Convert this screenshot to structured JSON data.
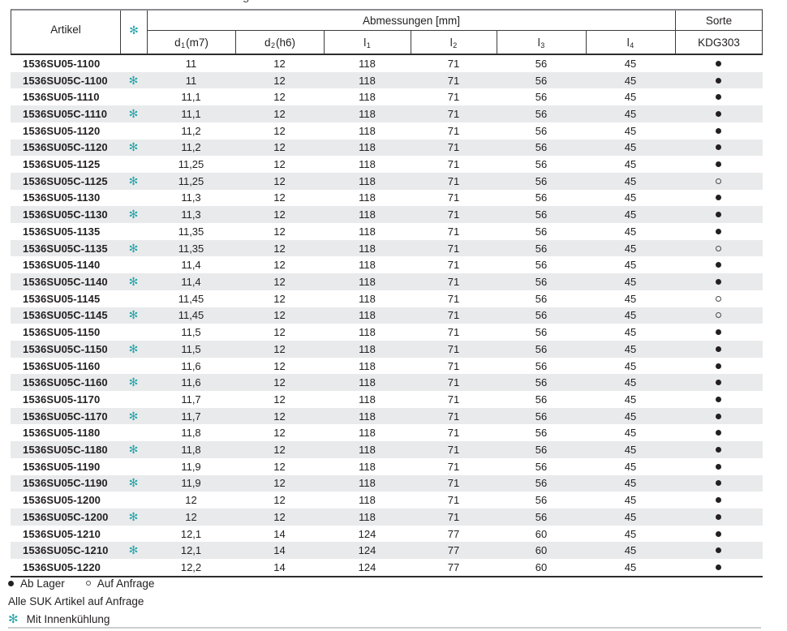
{
  "page": {
    "cropped_fragment": "g"
  },
  "icons": {
    "cooling_glyph": "✻",
    "filled_dot": "●",
    "open_dot": "○"
  },
  "colors": {
    "accent_teal": "#2aa6ab",
    "stripe": "#e9eaeb",
    "text": "#242122"
  },
  "table": {
    "header": {
      "artikel_label": "Artikel",
      "abmessungen_label": "Abmessungen [mm]",
      "sorte_label": "Sorte",
      "grade_label": "KDG303"
    },
    "dim_columns": [
      {
        "base": "d",
        "sub": "1",
        "rest": " (m7)"
      },
      {
        "base": "d",
        "sub": "2",
        "rest": " (h6)"
      },
      {
        "base": "l",
        "sub": "1",
        "rest": ""
      },
      {
        "base": "l",
        "sub": "2",
        "rest": ""
      },
      {
        "base": "l",
        "sub": "3",
        "rest": ""
      },
      {
        "base": "l",
        "sub": "4",
        "rest": ""
      }
    ],
    "rows": [
      {
        "artikel": "1536SU05-1100",
        "cooling": false,
        "highlight": false,
        "d1": "11",
        "d2": "12",
        "l1": "118",
        "l2": "71",
        "l3": "56",
        "l4": "45",
        "sorte": "filled"
      },
      {
        "artikel": "1536SU05C-1100",
        "cooling": true,
        "highlight": true,
        "d1": "11",
        "d2": "12",
        "l1": "118",
        "l2": "71",
        "l3": "56",
        "l4": "45",
        "sorte": "filled"
      },
      {
        "artikel": "1536SU05-1110",
        "cooling": false,
        "highlight": false,
        "d1": "11,1",
        "d2": "12",
        "l1": "118",
        "l2": "71",
        "l3": "56",
        "l4": "45",
        "sorte": "filled"
      },
      {
        "artikel": "1536SU05C-1110",
        "cooling": true,
        "highlight": true,
        "d1": "11,1",
        "d2": "12",
        "l1": "118",
        "l2": "71",
        "l3": "56",
        "l4": "45",
        "sorte": "filled"
      },
      {
        "artikel": "1536SU05-1120",
        "cooling": false,
        "highlight": false,
        "d1": "11,2",
        "d2": "12",
        "l1": "118",
        "l2": "71",
        "l3": "56",
        "l4": "45",
        "sorte": "filled"
      },
      {
        "artikel": "1536SU05C-1120",
        "cooling": true,
        "highlight": true,
        "d1": "11,2",
        "d2": "12",
        "l1": "118",
        "l2": "71",
        "l3": "56",
        "l4": "45",
        "sorte": "filled"
      },
      {
        "artikel": "1536SU05-1125",
        "cooling": false,
        "highlight": false,
        "d1": "11,25",
        "d2": "12",
        "l1": "118",
        "l2": "71",
        "l3": "56",
        "l4": "45",
        "sorte": "filled"
      },
      {
        "artikel": "1536SU05C-1125",
        "cooling": true,
        "highlight": true,
        "d1": "11,25",
        "d2": "12",
        "l1": "118",
        "l2": "71",
        "l3": "56",
        "l4": "45",
        "sorte": "open"
      },
      {
        "artikel": "1536SU05-1130",
        "cooling": false,
        "highlight": false,
        "d1": "11,3",
        "d2": "12",
        "l1": "118",
        "l2": "71",
        "l3": "56",
        "l4": "45",
        "sorte": "filled"
      },
      {
        "artikel": "1536SU05C-1130",
        "cooling": true,
        "highlight": true,
        "d1": "11,3",
        "d2": "12",
        "l1": "118",
        "l2": "71",
        "l3": "56",
        "l4": "45",
        "sorte": "filled"
      },
      {
        "artikel": "1536SU05-1135",
        "cooling": false,
        "highlight": false,
        "d1": "11,35",
        "d2": "12",
        "l1": "118",
        "l2": "71",
        "l3": "56",
        "l4": "45",
        "sorte": "filled"
      },
      {
        "artikel": "1536SU05C-1135",
        "cooling": true,
        "highlight": true,
        "d1": "11,35",
        "d2": "12",
        "l1": "118",
        "l2": "71",
        "l3": "56",
        "l4": "45",
        "sorte": "open"
      },
      {
        "artikel": "1536SU05-1140",
        "cooling": false,
        "highlight": false,
        "d1": "11,4",
        "d2": "12",
        "l1": "118",
        "l2": "71",
        "l3": "56",
        "l4": "45",
        "sorte": "filled"
      },
      {
        "artikel": "1536SU05C-1140",
        "cooling": true,
        "highlight": true,
        "d1": "11,4",
        "d2": "12",
        "l1": "118",
        "l2": "71",
        "l3": "56",
        "l4": "45",
        "sorte": "filled"
      },
      {
        "artikel": "1536SU05-1145",
        "cooling": false,
        "highlight": false,
        "d1": "11,45",
        "d2": "12",
        "l1": "118",
        "l2": "71",
        "l3": "56",
        "l4": "45",
        "sorte": "open"
      },
      {
        "artikel": "1536SU05C-1145",
        "cooling": true,
        "highlight": true,
        "d1": "11,45",
        "d2": "12",
        "l1": "118",
        "l2": "71",
        "l3": "56",
        "l4": "45",
        "sorte": "open"
      },
      {
        "artikel": "1536SU05-1150",
        "cooling": false,
        "highlight": false,
        "d1": "11,5",
        "d2": "12",
        "l1": "118",
        "l2": "71",
        "l3": "56",
        "l4": "45",
        "sorte": "filled"
      },
      {
        "artikel": "1536SU05C-1150",
        "cooling": true,
        "highlight": true,
        "d1": "11,5",
        "d2": "12",
        "l1": "118",
        "l2": "71",
        "l3": "56",
        "l4": "45",
        "sorte": "filled"
      },
      {
        "artikel": "1536SU05-1160",
        "cooling": false,
        "highlight": false,
        "d1": "11,6",
        "d2": "12",
        "l1": "118",
        "l2": "71",
        "l3": "56",
        "l4": "45",
        "sorte": "filled"
      },
      {
        "artikel": "1536SU05C-1160",
        "cooling": true,
        "highlight": true,
        "d1": "11,6",
        "d2": "12",
        "l1": "118",
        "l2": "71",
        "l3": "56",
        "l4": "45",
        "sorte": "filled"
      },
      {
        "artikel": "1536SU05-1170",
        "cooling": false,
        "highlight": false,
        "d1": "11,7",
        "d2": "12",
        "l1": "118",
        "l2": "71",
        "l3": "56",
        "l4": "45",
        "sorte": "filled"
      },
      {
        "artikel": "1536SU05C-1170",
        "cooling": true,
        "highlight": true,
        "d1": "11,7",
        "d2": "12",
        "l1": "118",
        "l2": "71",
        "l3": "56",
        "l4": "45",
        "sorte": "filled"
      },
      {
        "artikel": "1536SU05-1180",
        "cooling": false,
        "highlight": false,
        "d1": "11,8",
        "d2": "12",
        "l1": "118",
        "l2": "71",
        "l3": "56",
        "l4": "45",
        "sorte": "filled"
      },
      {
        "artikel": "1536SU05C-1180",
        "cooling": true,
        "highlight": true,
        "d1": "11,8",
        "d2": "12",
        "l1": "118",
        "l2": "71",
        "l3": "56",
        "l4": "45",
        "sorte": "filled"
      },
      {
        "artikel": "1536SU05-1190",
        "cooling": false,
        "highlight": false,
        "d1": "11,9",
        "d2": "12",
        "l1": "118",
        "l2": "71",
        "l3": "56",
        "l4": "45",
        "sorte": "filled"
      },
      {
        "artikel": "1536SU05C-1190",
        "cooling": true,
        "highlight": true,
        "d1": "11,9",
        "d2": "12",
        "l1": "118",
        "l2": "71",
        "l3": "56",
        "l4": "45",
        "sorte": "filled"
      },
      {
        "artikel": "1536SU05-1200",
        "cooling": false,
        "highlight": false,
        "d1": "12",
        "d2": "12",
        "l1": "118",
        "l2": "71",
        "l3": "56",
        "l4": "45",
        "sorte": "filled"
      },
      {
        "artikel": "1536SU05C-1200",
        "cooling": true,
        "highlight": true,
        "d1": "12",
        "d2": "12",
        "l1": "118",
        "l2": "71",
        "l3": "56",
        "l4": "45",
        "sorte": "filled"
      },
      {
        "artikel": "1536SU05-1210",
        "cooling": false,
        "highlight": false,
        "d1": "12,1",
        "d2": "14",
        "l1": "124",
        "l2": "77",
        "l3": "60",
        "l4": "45",
        "sorte": "filled"
      },
      {
        "artikel": "1536SU05C-1210",
        "cooling": true,
        "highlight": true,
        "d1": "12,1",
        "d2": "14",
        "l1": "124",
        "l2": "77",
        "l3": "60",
        "l4": "45",
        "sorte": "filled"
      },
      {
        "artikel": "1536SU05-1220",
        "cooling": false,
        "highlight": false,
        "d1": "12,2",
        "d2": "14",
        "l1": "124",
        "l2": "77",
        "l3": "60",
        "l4": "45",
        "sorte": "filled"
      }
    ]
  },
  "legend": {
    "filled_label": "Ab Lager",
    "open_label": "Auf Anfrage",
    "note": "Alle SUK Artikel auf Anfrage",
    "cooling_note": "Mit Innenkühlung"
  }
}
